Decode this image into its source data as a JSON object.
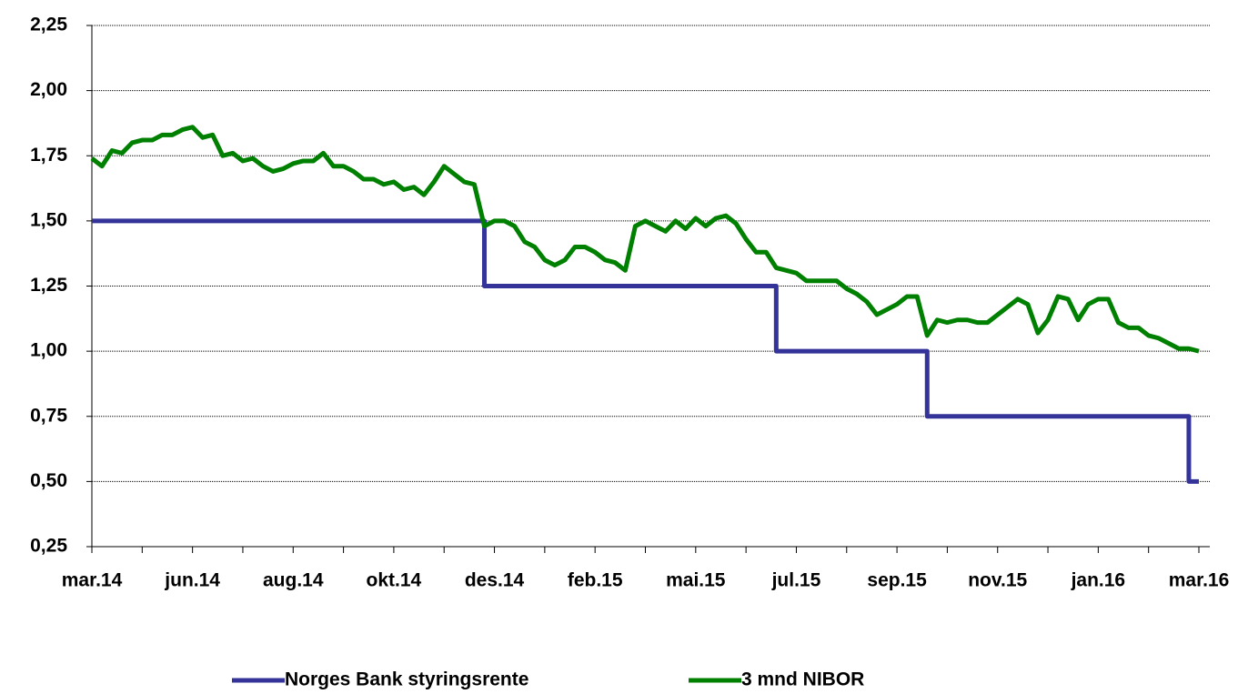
{
  "chart_data": {
    "type": "line",
    "categories": [
      "mar.14",
      null,
      null,
      null,
      null,
      null,
      null,
      null,
      null,
      null,
      "jun.14",
      null,
      null,
      null,
      null,
      null,
      null,
      null,
      null,
      null,
      "aug.14",
      null,
      null,
      null,
      null,
      null,
      null,
      null,
      null,
      null,
      "okt.14",
      null,
      null,
      null,
      null,
      null,
      null,
      null,
      null,
      null,
      "des.14",
      null,
      null,
      null,
      null,
      null,
      null,
      null,
      null,
      null,
      "feb.15",
      null,
      null,
      null,
      null,
      null,
      null,
      null,
      null,
      null,
      "mai.15",
      null,
      null,
      null,
      null,
      null,
      null,
      null,
      null,
      null,
      "jul.15",
      null,
      null,
      null,
      null,
      null,
      null,
      null,
      null,
      null,
      "sep.15",
      null,
      null,
      null,
      null,
      null,
      null,
      null,
      null,
      null,
      "nov.15",
      null,
      null,
      null,
      null,
      null,
      null,
      null,
      null,
      null,
      "jan.16",
      null,
      null,
      null,
      null,
      null,
      null,
      null,
      null,
      null,
      "mar.16"
    ],
    "series": [
      {
        "name": "Norges Bank styringsrente",
        "color": "#333399",
        "step": true,
        "values": [
          1.5,
          1.5,
          1.5,
          1.5,
          1.5,
          1.5,
          1.5,
          1.5,
          1.5,
          1.5,
          1.5,
          1.5,
          1.5,
          1.5,
          1.5,
          1.5,
          1.5,
          1.5,
          1.5,
          1.5,
          1.5,
          1.5,
          1.5,
          1.5,
          1.5,
          1.5,
          1.5,
          1.5,
          1.5,
          1.5,
          1.5,
          1.5,
          1.5,
          1.5,
          1.5,
          1.5,
          1.5,
          1.5,
          1.5,
          1.25,
          1.25,
          1.25,
          1.25,
          1.25,
          1.25,
          1.25,
          1.25,
          1.25,
          1.25,
          1.25,
          1.25,
          1.25,
          1.25,
          1.25,
          1.25,
          1.25,
          1.25,
          1.25,
          1.25,
          1.25,
          1.25,
          1.25,
          1.25,
          1.25,
          1.25,
          1.25,
          1.25,
          1.25,
          1.0,
          1.0,
          1.0,
          1.0,
          1.0,
          1.0,
          1.0,
          1.0,
          1.0,
          1.0,
          1.0,
          1.0,
          1.0,
          1.0,
          1.0,
          0.75,
          0.75,
          0.75,
          0.75,
          0.75,
          0.75,
          0.75,
          0.75,
          0.75,
          0.75,
          0.75,
          0.75,
          0.75,
          0.75,
          0.75,
          0.75,
          0.75,
          0.75,
          0.75,
          0.75,
          0.75,
          0.75,
          0.75,
          0.75,
          0.75,
          0.75,
          0.5,
          0.5
        ]
      },
      {
        "name": "3 mnd NIBOR",
        "color": "#008000",
        "step": false,
        "values": [
          1.74,
          1.71,
          1.77,
          1.76,
          1.8,
          1.81,
          1.81,
          1.83,
          1.83,
          1.85,
          1.86,
          1.82,
          1.83,
          1.75,
          1.76,
          1.73,
          1.74,
          1.71,
          1.69,
          1.7,
          1.72,
          1.73,
          1.73,
          1.76,
          1.71,
          1.71,
          1.69,
          1.66,
          1.66,
          1.64,
          1.65,
          1.62,
          1.63,
          1.6,
          1.65,
          1.71,
          1.68,
          1.65,
          1.64,
          1.48,
          1.5,
          1.5,
          1.48,
          1.42,
          1.4,
          1.35,
          1.33,
          1.35,
          1.4,
          1.4,
          1.38,
          1.35,
          1.34,
          1.31,
          1.48,
          1.5,
          1.48,
          1.46,
          1.5,
          1.47,
          1.51,
          1.48,
          1.51,
          1.52,
          1.49,
          1.43,
          1.38,
          1.38,
          1.32,
          1.31,
          1.3,
          1.27,
          1.27,
          1.27,
          1.27,
          1.24,
          1.22,
          1.19,
          1.14,
          1.16,
          1.18,
          1.21,
          1.21,
          1.06,
          1.12,
          1.11,
          1.12,
          1.12,
          1.11,
          1.11,
          1.14,
          1.17,
          1.2,
          1.18,
          1.07,
          1.12,
          1.21,
          1.2,
          1.12,
          1.18,
          1.2,
          1.2,
          1.11,
          1.09,
          1.09,
          1.06,
          1.05,
          1.03,
          1.01,
          1.01,
          1.0
        ]
      }
    ],
    "ylim": [
      0.25,
      2.25
    ],
    "yticks": [
      {
        "value": 0.25,
        "label": "0,25"
      },
      {
        "value": 0.5,
        "label": "0,50"
      },
      {
        "value": 0.75,
        "label": "0,75"
      },
      {
        "value": 1.0,
        "label": "1,00"
      },
      {
        "value": 1.25,
        "label": "1,25"
      },
      {
        "value": 1.5,
        "label": "1,50"
      },
      {
        "value": 1.75,
        "label": "1,75"
      },
      {
        "value": 2.0,
        "label": "2,00"
      },
      {
        "value": 2.25,
        "label": "2,25"
      }
    ],
    "grid": true,
    "legend": "bottom"
  }
}
